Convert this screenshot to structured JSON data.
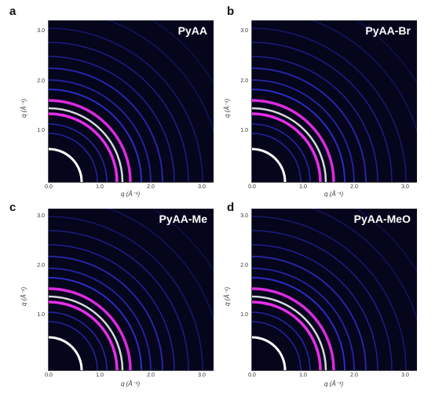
{
  "panels": [
    {
      "letter": "a",
      "sample": "PyAA"
    },
    {
      "letter": "b",
      "sample": "PyAA-Br"
    },
    {
      "letter": "c",
      "sample": "PyAA-Me"
    },
    {
      "letter": "d",
      "sample": "PyAA-MeO"
    }
  ],
  "axes": {
    "y_label": "q (Å⁻¹)",
    "x_label": "q (Å⁻¹)",
    "y_ticks": [
      "1.0",
      "2.0",
      "3.0"
    ],
    "x_ticks": [
      "0.0",
      "1.0",
      "2.0",
      "3.0"
    ]
  },
  "colors": {
    "background": "#05051c",
    "ring_blue": "#3a3aff",
    "ring_magenta": "#ff33ff",
    "ring_white": "#ffffff"
  }
}
